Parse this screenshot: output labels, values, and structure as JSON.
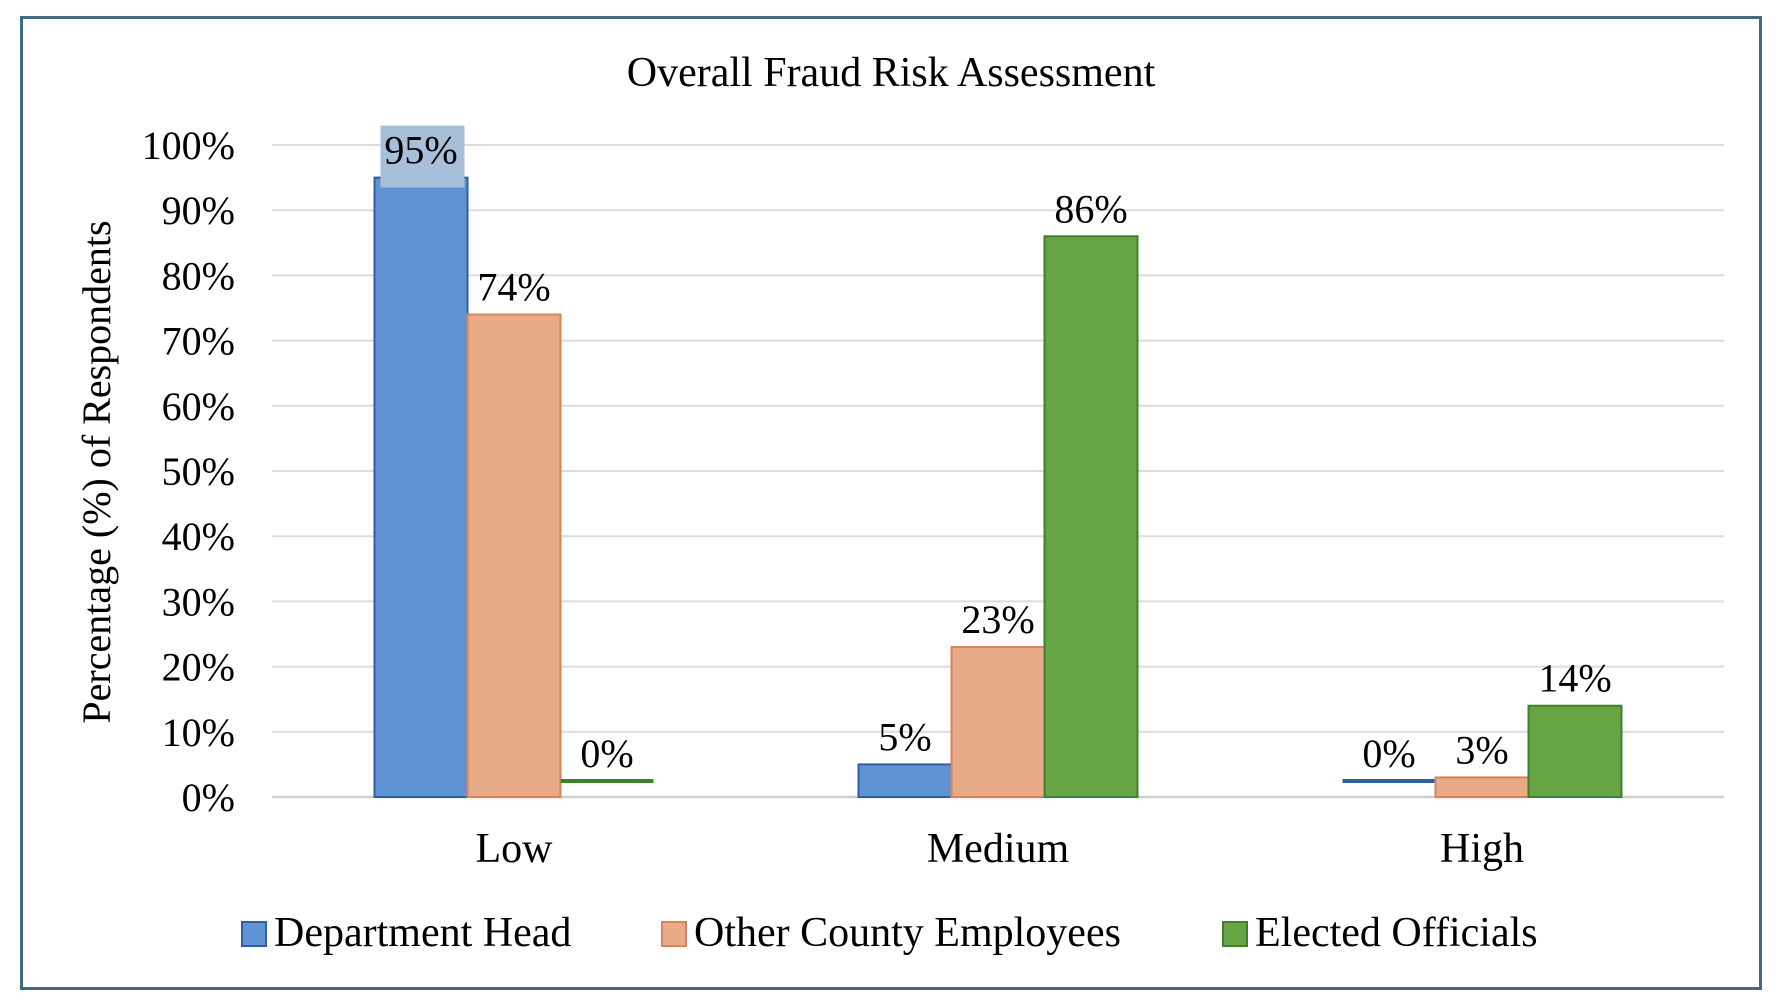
{
  "chart_data": {
    "type": "bar",
    "title": "Overall Fraud Risk Assessment",
    "xlabel": "",
    "ylabel": "Percentage (%) of Respondents",
    "ylim": [
      0,
      100
    ],
    "yticks": [
      "0%",
      "10%",
      "20%",
      "30%",
      "40%",
      "50%",
      "60%",
      "70%",
      "80%",
      "90%",
      "100%"
    ],
    "categories": [
      "Low",
      "Medium",
      "High"
    ],
    "series": [
      {
        "name": "Department Head",
        "values": [
          95,
          5,
          0
        ],
        "labels": [
          "95%",
          "5%",
          "0%"
        ],
        "color": "#6193d4",
        "stroke": "#2f5f9e"
      },
      {
        "name": "Other County Employees",
        "values": [
          74,
          23,
          3
        ],
        "labels": [
          "74%",
          "23%",
          "3%"
        ],
        "color": "#e9ab87",
        "stroke": "#d7835c"
      },
      {
        "name": "Elected Officials",
        "values": [
          0,
          86,
          14
        ],
        "labels": [
          "0%",
          "86%",
          "14%"
        ],
        "color": "#67a544",
        "stroke": "#3f7f2d"
      }
    ],
    "grid": true,
    "legend": "bottom",
    "highlighted_label": "95%"
  }
}
